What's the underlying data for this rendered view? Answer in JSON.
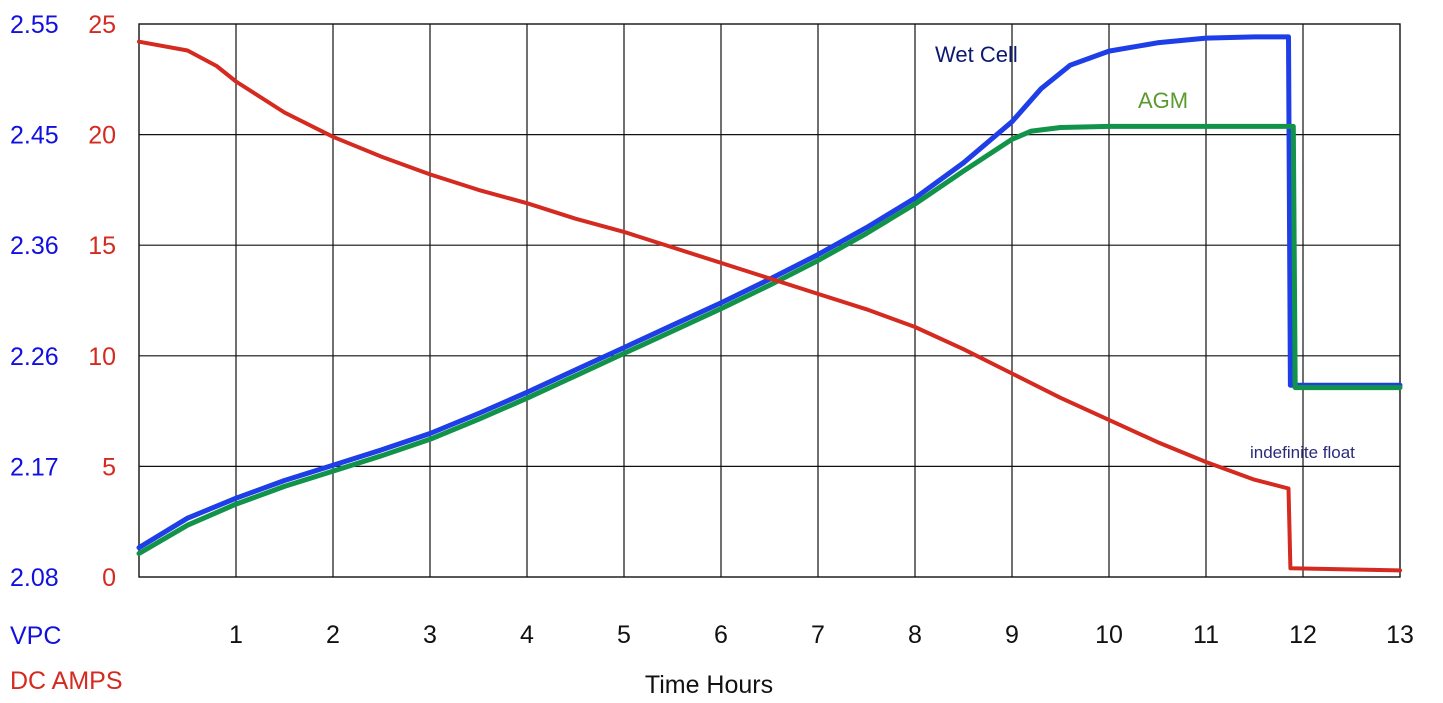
{
  "chart_data": {
    "type": "line",
    "title": "",
    "xlabel": "Time Hours",
    "xlim": [
      0,
      13
    ],
    "x_ticks": [
      "1",
      "2",
      "3",
      "4",
      "5",
      "6",
      "7",
      "8",
      "9",
      "10",
      "11",
      "12",
      "13"
    ],
    "grid": true,
    "left_axis_vpc": {
      "label": "VPC",
      "color": "#1010e0",
      "ticks": [
        "2.08",
        "2.17",
        "2.26",
        "2.36",
        "2.45",
        "2.55"
      ],
      "ylim": [
        2.08,
        2.55
      ]
    },
    "left_axis_amps": {
      "label": "DC AMPS",
      "color": "#d42a20",
      "ticks": [
        "0",
        "5",
        "10",
        "15",
        "20",
        "25"
      ],
      "ylim": [
        0,
        25
      ]
    },
    "series": [
      {
        "name": "Wet Cell",
        "axis": "vpc",
        "color": "#1e3ee8",
        "points": [
          [
            0,
            2.105
          ],
          [
            0.5,
            2.13
          ],
          [
            1,
            2.147
          ],
          [
            1.5,
            2.162
          ],
          [
            2,
            2.175
          ],
          [
            2.5,
            2.188
          ],
          [
            3,
            2.202
          ],
          [
            3.5,
            2.219
          ],
          [
            4,
            2.237
          ],
          [
            4.5,
            2.256
          ],
          [
            5,
            2.275
          ],
          [
            5.5,
            2.294
          ],
          [
            6,
            2.313
          ],
          [
            6.5,
            2.333
          ],
          [
            7,
            2.354
          ],
          [
            7.5,
            2.377
          ],
          [
            8,
            2.402
          ],
          [
            8.5,
            2.432
          ],
          [
            9,
            2.467
          ],
          [
            9.3,
            2.495
          ],
          [
            9.6,
            2.515
          ],
          [
            10,
            2.527
          ],
          [
            10.5,
            2.534
          ],
          [
            11,
            2.538
          ],
          [
            11.5,
            2.539
          ],
          [
            11.85,
            2.539
          ],
          [
            11.87,
            2.243
          ],
          [
            13,
            2.243
          ]
        ]
      },
      {
        "name": "AGM",
        "axis": "vpc",
        "color": "#11944a",
        "points": [
          [
            0,
            2.1
          ],
          [
            0.5,
            2.124
          ],
          [
            1,
            2.142
          ],
          [
            1.5,
            2.157
          ],
          [
            2,
            2.17
          ],
          [
            2.5,
            2.183
          ],
          [
            3,
            2.197
          ],
          [
            3.5,
            2.214
          ],
          [
            4,
            2.232
          ],
          [
            4.5,
            2.251
          ],
          [
            5,
            2.27
          ],
          [
            5.5,
            2.289
          ],
          [
            6,
            2.308
          ],
          [
            6.5,
            2.328
          ],
          [
            7,
            2.349
          ],
          [
            7.5,
            2.372
          ],
          [
            8,
            2.397
          ],
          [
            8.5,
            2.425
          ],
          [
            9,
            2.452
          ],
          [
            9.2,
            2.459
          ],
          [
            9.5,
            2.462
          ],
          [
            10,
            2.463
          ],
          [
            11,
            2.463
          ],
          [
            11.9,
            2.463
          ],
          [
            11.92,
            2.241
          ],
          [
            13,
            2.241
          ]
        ]
      },
      {
        "name": "DC Amps",
        "axis": "amps",
        "color": "#d42a20",
        "points": [
          [
            0,
            24.2
          ],
          [
            0.5,
            23.8
          ],
          [
            0.8,
            23.1
          ],
          [
            1,
            22.4
          ],
          [
            1.5,
            21.0
          ],
          [
            2,
            19.9
          ],
          [
            2.5,
            19.0
          ],
          [
            3,
            18.2
          ],
          [
            3.5,
            17.5
          ],
          [
            4,
            16.9
          ],
          [
            4.5,
            16.2
          ],
          [
            5,
            15.6
          ],
          [
            5.5,
            14.9
          ],
          [
            6,
            14.2
          ],
          [
            6.5,
            13.5
          ],
          [
            7,
            12.8
          ],
          [
            7.5,
            12.1
          ],
          [
            8,
            11.3
          ],
          [
            8.5,
            10.3
          ],
          [
            9,
            9.2
          ],
          [
            9.5,
            8.1
          ],
          [
            10,
            7.1
          ],
          [
            10.5,
            6.1
          ],
          [
            11,
            5.2
          ],
          [
            11.5,
            4.4
          ],
          [
            11.85,
            4.0
          ],
          [
            11.87,
            0.4
          ],
          [
            13,
            0.3
          ]
        ]
      }
    ],
    "annotations": [
      {
        "text": "Wet Cell"
      },
      {
        "text": "AGM"
      },
      {
        "text": "indefinite float"
      }
    ]
  }
}
